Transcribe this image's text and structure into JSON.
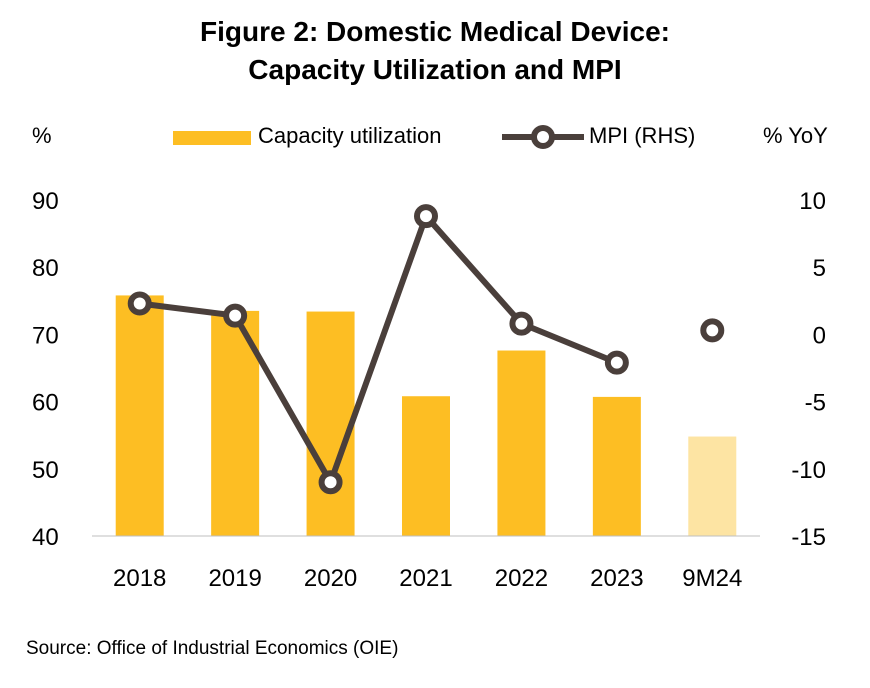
{
  "title_line1": "Figure 2:  Domestic Medical Device:",
  "title_line2": "Capacity Utilization and MPI",
  "left_unit": "%",
  "right_unit": "% YoY",
  "source": "Source: Office of Industrial Economics (OIE)",
  "chart_data": {
    "type": "bar",
    "categories": [
      "2018",
      "2019",
      "2020",
      "2021",
      "2022",
      "2023",
      "9M24"
    ],
    "series": [
      {
        "name": "Capacity utilization",
        "type": "bar",
        "axis": "left",
        "values": [
          75.8,
          73.5,
          73.4,
          60.8,
          67.6,
          60.7,
          54.8
        ],
        "color": "#FDBE23",
        "highlight_last_color": "#FDE4A3"
      },
      {
        "name": "MPI (RHS)",
        "type": "line",
        "axis": "right",
        "values": [
          2.3,
          1.4,
          -11.0,
          8.8,
          0.8,
          -2.1,
          0.3
        ],
        "connected_count": 6,
        "color": "#4A3F3B"
      }
    ],
    "left_axis": {
      "ylim": [
        40,
        90
      ],
      "ticks": [
        40,
        50,
        60,
        70,
        80,
        90
      ]
    },
    "right_axis": {
      "ylim": [
        -15,
        10
      ],
      "ticks": [
        -15,
        -10,
        -5,
        0,
        5,
        10
      ]
    },
    "legend_position": "top",
    "grid": false
  }
}
